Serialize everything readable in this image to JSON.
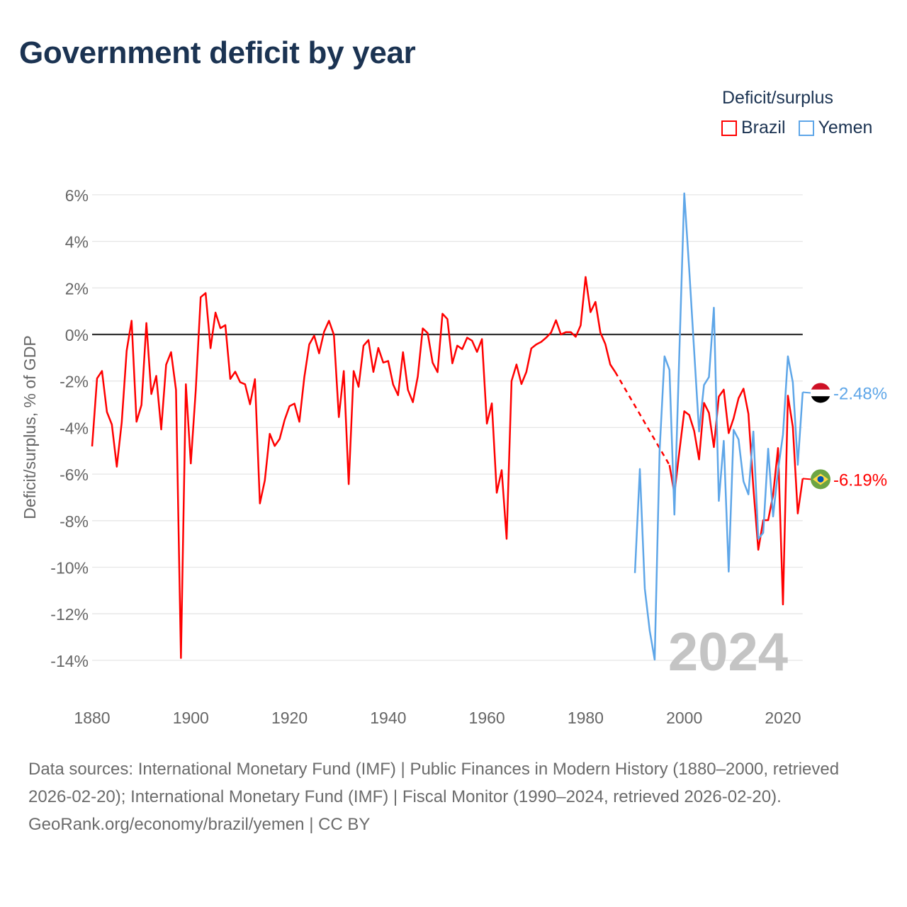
{
  "title": "Government deficit by year",
  "legend": {
    "title": "Deficit/surplus",
    "items": [
      {
        "name": "Brazil",
        "color": "#ff0000"
      },
      {
        "name": "Yemen",
        "color": "#5ea6e8"
      }
    ]
  },
  "footer": {
    "sources": "Data sources: International Monetary Fund (IMF) | Public Finances in Modern History (1880–2000, retrieved 2026-02-20); International Monetary Fund (IMF) | Fiscal Monitor (1990–2024, retrieved 2026-02-20).",
    "credit": "GeoRank.org/economy/brazil/yemen | CC BY"
  },
  "chart_data": {
    "type": "line",
    "title": "Government deficit by year",
    "xlabel": "",
    "ylabel": "Deficit/surplus, % of GDP",
    "xlim": [
      1880,
      2024
    ],
    "ylim": [
      -14,
      6
    ],
    "x_ticks": [
      1880,
      1900,
      1920,
      1940,
      1960,
      1980,
      2000,
      2020
    ],
    "x_tick_labels": [
      "1880",
      "1900",
      "1920",
      "1940",
      "1960",
      "1980",
      "2000",
      "2020"
    ],
    "y_ticks": [
      6,
      4,
      2,
      0,
      -2,
      -4,
      -6,
      -8,
      -10,
      -12,
      -14
    ],
    "y_tick_labels": [
      "6%",
      "4%",
      "2%",
      "0%",
      "-2%",
      "-4%",
      "-6%",
      "-8%",
      "-10%",
      "-12%",
      "-14%"
    ],
    "grid": true,
    "legend_position": "top-right",
    "year_watermark": "2024",
    "series": [
      {
        "name": "Brazil",
        "color": "#ff0000",
        "end_label": "-6.19%",
        "flag": "brazil-flag",
        "segments": [
          {
            "start": 1880,
            "values": [
              -4.81,
              -1.89,
              -1.57,
              -3.33,
              -3.87,
              -5.68,
              -3.78,
              -0.7,
              0.59,
              -3.75,
              -3.03,
              0.49,
              -2.56,
              -1.78,
              -4.08,
              -1.3,
              -0.76,
              -2.38,
              -13.9,
              -2.14,
              -5.54,
              -2.4,
              1.6,
              1.78,
              -0.59,
              0.94,
              0.27,
              0.4,
              -1.91,
              -1.6,
              -2.05,
              -2.14,
              -3.0,
              -1.92,
              -7.26,
              -6.27,
              -4.27,
              -4.79,
              -4.49,
              -3.68,
              -3.08,
              -2.97,
              -3.75,
              -1.84,
              -0.43,
              -0.05,
              -0.81,
              0.11,
              0.59,
              -0.02,
              -3.55,
              -1.57,
              -6.43,
              -1.57,
              -2.25,
              -0.48,
              -0.24,
              -1.61,
              -0.58,
              -1.21,
              -1.14,
              -2.15,
              -2.61,
              -0.76,
              -2.38,
              -2.91,
              -1.8,
              0.26,
              0.06,
              -1.21,
              -1.62,
              0.89,
              0.66,
              -1.24,
              -0.48,
              -0.63,
              -0.14,
              -0.27,
              -0.75,
              -0.2,
              -3.83,
              -2.96,
              -6.8,
              -5.83,
              -8.78,
              -2.0,
              -1.29,
              -2.13,
              -1.61,
              -0.6,
              -0.43,
              -0.32,
              -0.14,
              0.08,
              0.61,
              0.0,
              0.1,
              0.1,
              -0.1,
              0.39,
              2.47,
              0.96,
              1.4,
              0.08,
              -0.41,
              -1.29,
              -1.61
            ]
          },
          {
            "start": 1997,
            "values": [
              -5.61,
              -6.84,
              -5.04,
              -3.3,
              -3.46,
              -4.14,
              -5.37,
              -2.94,
              -3.37,
              -4.84,
              -2.67,
              -2.37,
              -4.24,
              -3.6,
              -2.74,
              -2.33,
              -3.41,
              -6.58,
              -9.25,
              -7.98,
              -7.98,
              -6.9,
              -4.88,
              -11.6,
              -2.63,
              -3.97,
              -7.69,
              -6.19
            ]
          }
        ]
      },
      {
        "name": "Yemen",
        "color": "#5ea6e8",
        "end_label": "-2.48%",
        "flag": "yemen-flag",
        "segments": [
          {
            "start": 1990,
            "values": [
              -10.25,
              -5.78,
              -10.92,
              -12.73,
              -13.97,
              -5.0,
              -0.94,
              -1.52,
              -7.74,
              -0.8,
              6.06,
              2.8,
              -0.7,
              -4.17,
              -2.17,
              -1.83,
              1.15,
              -7.15,
              -4.57,
              -10.19,
              -4.1,
              -4.51,
              -6.31,
              -6.87,
              -4.17,
              -8.78,
              -8.52,
              -4.91,
              -7.82,
              -5.84,
              -4.3,
              -0.94,
              -2.06,
              -5.6,
              -2.48
            ]
          }
        ]
      }
    ]
  }
}
